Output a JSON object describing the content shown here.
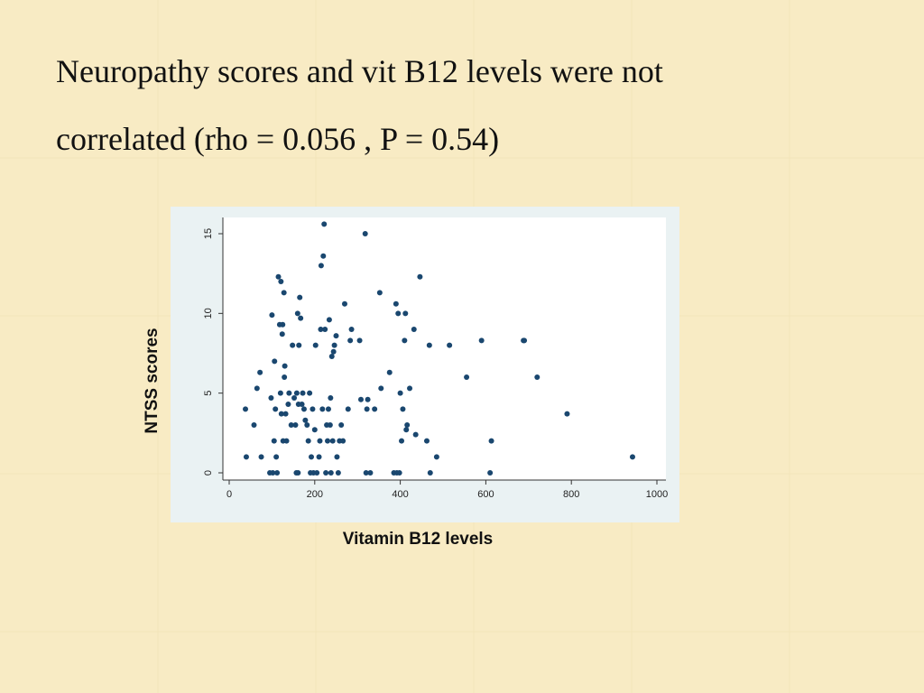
{
  "slide": {
    "title_line_1": "Neuropathy scores and vit B12 levels were not",
    "title_line_2": "correlated (rho = 0.056 , P = 0.54)",
    "background_color": "#f8ebc4",
    "y_axis_caption": "NTSS scores",
    "x_axis_caption": "Vitamin B12 levels"
  },
  "chart_data": {
    "type": "scatter",
    "xlim": [
      0,
      1000
    ],
    "ylim": [
      0,
      15
    ],
    "x_ticks": [
      0,
      200,
      400,
      600,
      800,
      1000
    ],
    "y_ticks": [
      0,
      5,
      10,
      15
    ],
    "grid": false,
    "legend": "none",
    "marker_color": "#1a476f",
    "panel_color": "#eaf2f3",
    "plot_color": "#ffffff",
    "points": [
      {
        "x": 38,
        "y": 4
      },
      {
        "x": 40,
        "y": 1
      },
      {
        "x": 58,
        "y": 3
      },
      {
        "x": 65,
        "y": 5.3
      },
      {
        "x": 72,
        "y": 6.3
      },
      {
        "x": 75,
        "y": 1
      },
      {
        "x": 95,
        "y": 0
      },
      {
        "x": 98,
        "y": 4.7
      },
      {
        "x": 100,
        "y": 9.9
      },
      {
        "x": 102,
        "y": 0
      },
      {
        "x": 105,
        "y": 2
      },
      {
        "x": 106,
        "y": 7
      },
      {
        "x": 108,
        "y": 4
      },
      {
        "x": 110,
        "y": 1
      },
      {
        "x": 112,
        "y": 0
      },
      {
        "x": 115,
        "y": 12.3
      },
      {
        "x": 118,
        "y": 9.3
      },
      {
        "x": 120,
        "y": 5
      },
      {
        "x": 121,
        "y": 12
      },
      {
        "x": 122,
        "y": 3.7
      },
      {
        "x": 124,
        "y": 8.7
      },
      {
        "x": 125,
        "y": 9.3
      },
      {
        "x": 126,
        "y": 2
      },
      {
        "x": 128,
        "y": 11.3
      },
      {
        "x": 129,
        "y": 6
      },
      {
        "x": 130,
        "y": 6.7
      },
      {
        "x": 132,
        "y": 3.7
      },
      {
        "x": 134,
        "y": 2
      },
      {
        "x": 138,
        "y": 4.3
      },
      {
        "x": 140,
        "y": 5
      },
      {
        "x": 145,
        "y": 3
      },
      {
        "x": 148,
        "y": 8
      },
      {
        "x": 152,
        "y": 4.7
      },
      {
        "x": 155,
        "y": 3
      },
      {
        "x": 157,
        "y": 0
      },
      {
        "x": 158,
        "y": 5
      },
      {
        "x": 160,
        "y": 10
      },
      {
        "x": 161,
        "y": 0
      },
      {
        "x": 162,
        "y": 4.3
      },
      {
        "x": 163,
        "y": 8
      },
      {
        "x": 165,
        "y": 11
      },
      {
        "x": 167,
        "y": 9.7
      },
      {
        "x": 170,
        "y": 4.3
      },
      {
        "x": 172,
        "y": 5
      },
      {
        "x": 175,
        "y": 4
      },
      {
        "x": 178,
        "y": 3.3
      },
      {
        "x": 182,
        "y": 3
      },
      {
        "x": 185,
        "y": 2
      },
      {
        "x": 188,
        "y": 5
      },
      {
        "x": 190,
        "y": 0
      },
      {
        "x": 192,
        "y": 1
      },
      {
        "x": 195,
        "y": 4
      },
      {
        "x": 197,
        "y": 0
      },
      {
        "x": 200,
        "y": 2.7
      },
      {
        "x": 202,
        "y": 8
      },
      {
        "x": 205,
        "y": 0
      },
      {
        "x": 210,
        "y": 1
      },
      {
        "x": 212,
        "y": 2
      },
      {
        "x": 214,
        "y": 9
      },
      {
        "x": 215,
        "y": 13
      },
      {
        "x": 218,
        "y": 4
      },
      {
        "x": 220,
        "y": 13.6
      },
      {
        "x": 222,
        "y": 15.6
      },
      {
        "x": 224,
        "y": 9
      },
      {
        "x": 226,
        "y": 0
      },
      {
        "x": 228,
        "y": 3
      },
      {
        "x": 230,
        "y": 2
      },
      {
        "x": 232,
        "y": 4
      },
      {
        "x": 234,
        "y": 9.6
      },
      {
        "x": 236,
        "y": 3
      },
      {
        "x": 237,
        "y": 4.7
      },
      {
        "x": 238,
        "y": 0
      },
      {
        "x": 240,
        "y": 7.3
      },
      {
        "x": 242,
        "y": 2
      },
      {
        "x": 244,
        "y": 7.6
      },
      {
        "x": 246,
        "y": 8
      },
      {
        "x": 250,
        "y": 8.6
      },
      {
        "x": 252,
        "y": 1
      },
      {
        "x": 255,
        "y": 0
      },
      {
        "x": 258,
        "y": 2
      },
      {
        "x": 262,
        "y": 3
      },
      {
        "x": 266,
        "y": 2
      },
      {
        "x": 270,
        "y": 10.6
      },
      {
        "x": 278,
        "y": 4
      },
      {
        "x": 283,
        "y": 8.3
      },
      {
        "x": 286,
        "y": 9
      },
      {
        "x": 305,
        "y": 8.3
      },
      {
        "x": 308,
        "y": 4.6
      },
      {
        "x": 318,
        "y": 15
      },
      {
        "x": 320,
        "y": 0
      },
      {
        "x": 322,
        "y": 4
      },
      {
        "x": 324,
        "y": 4.6
      },
      {
        "x": 330,
        "y": 0
      },
      {
        "x": 340,
        "y": 4
      },
      {
        "x": 352,
        "y": 11.3
      },
      {
        "x": 355,
        "y": 5.3
      },
      {
        "x": 375,
        "y": 6.3
      },
      {
        "x": 385,
        "y": 0
      },
      {
        "x": 390,
        "y": 10.6
      },
      {
        "x": 392,
        "y": 0
      },
      {
        "x": 395,
        "y": 10
      },
      {
        "x": 398,
        "y": 0
      },
      {
        "x": 400,
        "y": 5
      },
      {
        "x": 403,
        "y": 2
      },
      {
        "x": 406,
        "y": 4
      },
      {
        "x": 410,
        "y": 8.3
      },
      {
        "x": 412,
        "y": 10
      },
      {
        "x": 414,
        "y": 2.7
      },
      {
        "x": 416,
        "y": 3
      },
      {
        "x": 422,
        "y": 5.3
      },
      {
        "x": 432,
        "y": 9
      },
      {
        "x": 436,
        "y": 2.4
      },
      {
        "x": 446,
        "y": 12.3
      },
      {
        "x": 462,
        "y": 2
      },
      {
        "x": 468,
        "y": 8
      },
      {
        "x": 470,
        "y": 0
      },
      {
        "x": 485,
        "y": 1
      },
      {
        "x": 515,
        "y": 8
      },
      {
        "x": 555,
        "y": 6
      },
      {
        "x": 590,
        "y": 8.3
      },
      {
        "x": 610,
        "y": 0
      },
      {
        "x": 613,
        "y": 2
      },
      {
        "x": 688,
        "y": 8.3
      },
      {
        "x": 690,
        "y": 8.3
      },
      {
        "x": 720,
        "y": 6
      },
      {
        "x": 790,
        "y": 3.7
      },
      {
        "x": 943,
        "y": 1
      }
    ]
  }
}
